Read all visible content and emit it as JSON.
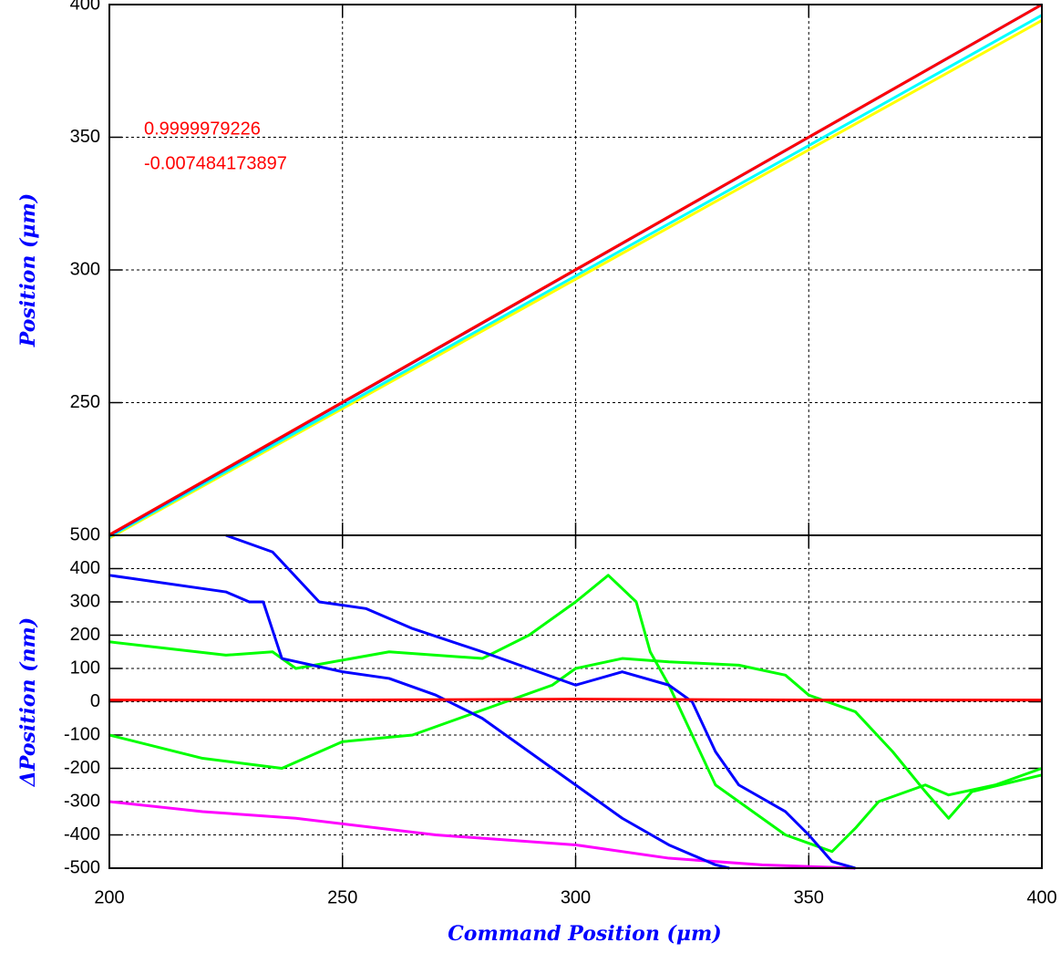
{
  "chart_data": [
    {
      "type": "line",
      "ylabel": "Position (μm)",
      "xlim": [
        200,
        400
      ],
      "xticks": [
        200,
        250,
        300,
        350,
        400
      ],
      "ylim": [
        200,
        400
      ],
      "yticks": [
        250,
        300,
        350,
        400
      ],
      "grid": true,
      "annotations": [
        "0.9999979226",
        "-0.007484173897"
      ],
      "annotation_color": "#ff0000",
      "series": [
        {
          "color": "#ffff00",
          "x": [
            200,
            400
          ],
          "values": [
            199,
            394
          ]
        },
        {
          "color": "#00ffff",
          "x": [
            200,
            400
          ],
          "values": [
            199.5,
            396
          ]
        },
        {
          "color": "#0000ff",
          "x": [
            200,
            400
          ],
          "values": [
            200,
            400
          ]
        },
        {
          "color": "#ff0000",
          "x": [
            200,
            400
          ],
          "values": [
            200.2,
            400
          ]
        }
      ]
    },
    {
      "type": "line",
      "ylabel": "ΔPosition (nm)",
      "xlabel": "Command Position (μm)",
      "xlim": [
        200,
        400
      ],
      "xticks": [
        200,
        250,
        300,
        350,
        400
      ],
      "ylim": [
        -500,
        500
      ],
      "yticks": [
        -500,
        -400,
        -300,
        -200,
        -100,
        0,
        100,
        200,
        300,
        400,
        500
      ],
      "grid": true,
      "series": [
        {
          "color": "#ff00ff",
          "x": [
            200,
            220,
            240,
            270,
            300,
            320,
            340,
            360
          ],
          "values": [
            -300,
            -330,
            -350,
            -400,
            -430,
            -470,
            -490,
            -500
          ]
        },
        {
          "color": "#00ff00",
          "x": [
            200,
            225,
            235,
            240,
            260,
            280,
            290,
            300,
            307,
            313,
            316,
            320,
            325,
            330,
            340,
            345,
            355,
            360,
            365,
            375,
            380,
            390,
            400
          ],
          "values": [
            180,
            140,
            150,
            100,
            150,
            130,
            200,
            300,
            380,
            300,
            150,
            50,
            -100,
            -250,
            -350,
            -400,
            -450,
            -380,
            -300,
            -250,
            -280,
            -250,
            -200
          ]
        },
        {
          "color": "#00ff00",
          "x": [
            200,
            220,
            237,
            250,
            265,
            285,
            295,
            300,
            310,
            320,
            335,
            345,
            350,
            360,
            368,
            375,
            380,
            385,
            400
          ],
          "values": [
            -100,
            -170,
            -200,
            -120,
            -100,
            0,
            50,
            100,
            130,
            120,
            110,
            80,
            20,
            -30,
            -150,
            -270,
            -350,
            -270,
            -220
          ]
        },
        {
          "color": "#0000ff",
          "x": [
            200,
            225,
            230,
            233,
            237,
            250,
            260,
            270,
            280,
            290,
            300,
            310,
            320,
            330,
            333
          ],
          "values": [
            380,
            330,
            300,
            300,
            130,
            90,
            70,
            20,
            -50,
            -150,
            -250,
            -350,
            -430,
            -490,
            -500
          ]
        },
        {
          "color": "#0000ff",
          "x": [
            225,
            235,
            245,
            255,
            265,
            280,
            290,
            300,
            310,
            320,
            325,
            330,
            335,
            345,
            350,
            355,
            360
          ],
          "values": [
            500,
            450,
            300,
            280,
            220,
            150,
            100,
            50,
            90,
            50,
            0,
            -150,
            -250,
            -330,
            -400,
            -480,
            -500
          ]
        },
        {
          "color": "#ff0000",
          "x": [
            200,
            250,
            300,
            350,
            400
          ],
          "values": [
            5,
            5,
            8,
            5,
            5
          ]
        }
      ]
    }
  ]
}
